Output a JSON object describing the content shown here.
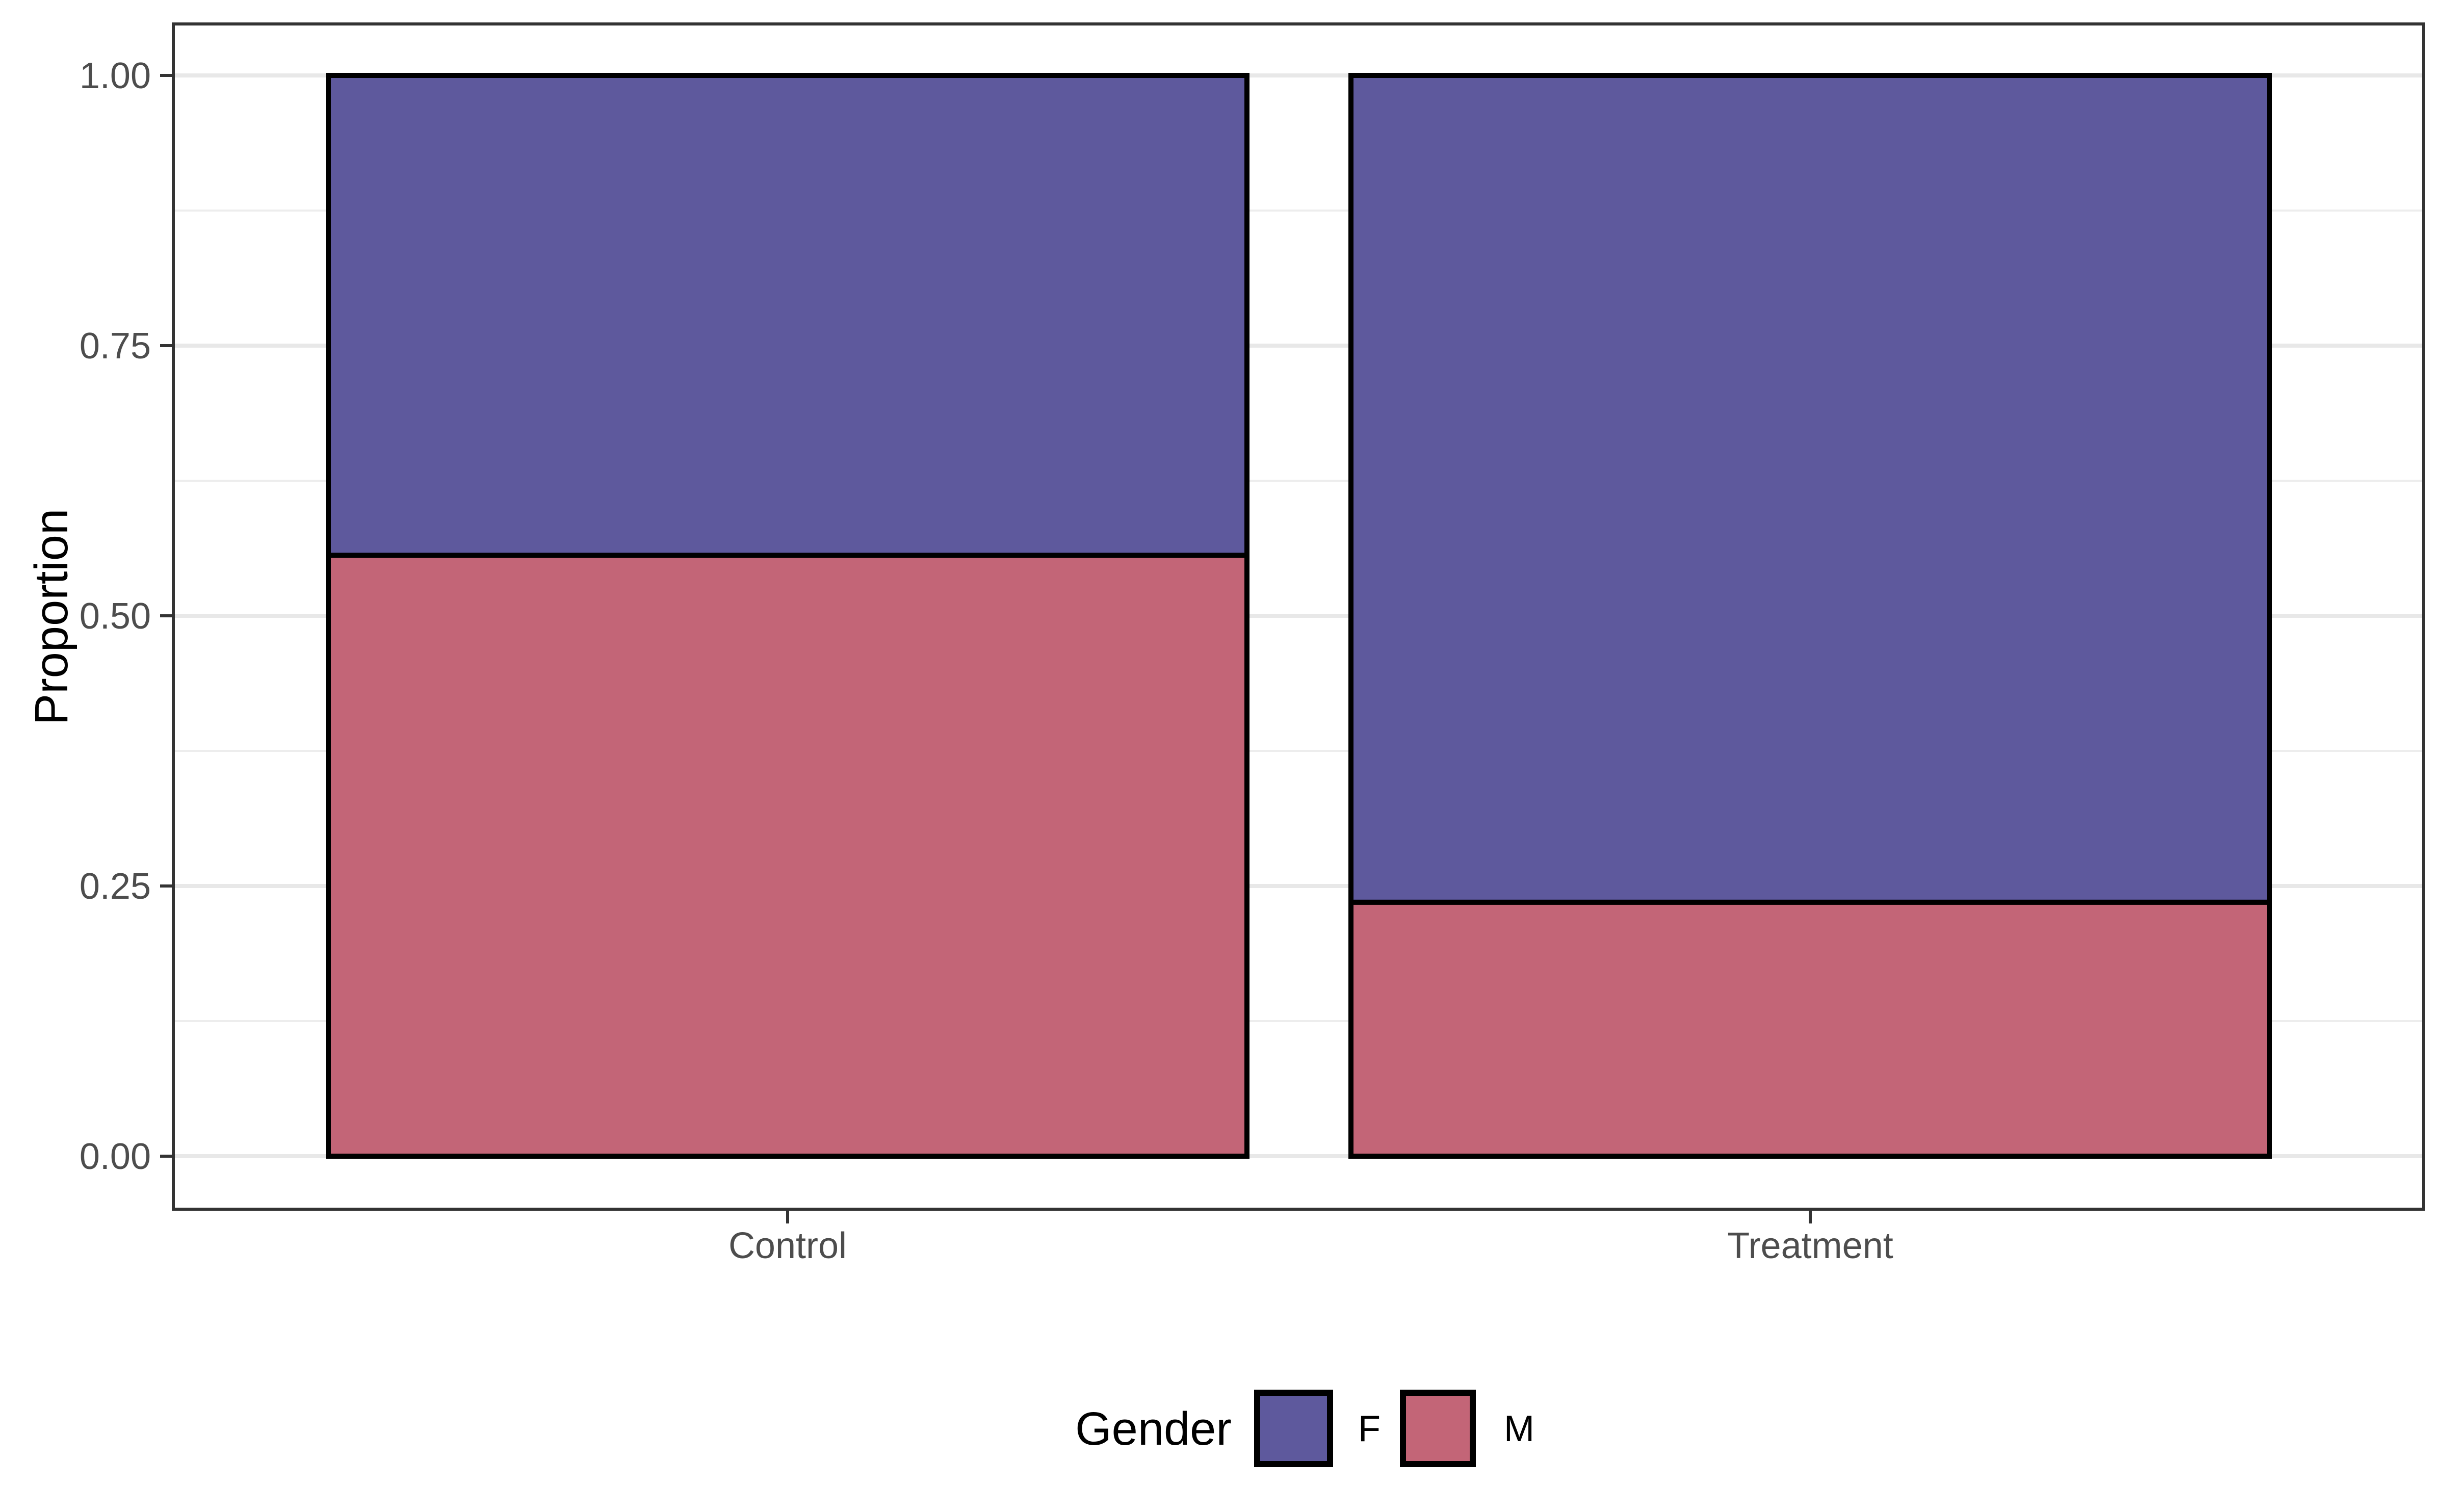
{
  "chart_data": {
    "type": "bar",
    "stacked": true,
    "normalized": true,
    "title": "",
    "categories": [
      "Control",
      "Treatment"
    ],
    "series": [
      {
        "name": "F",
        "color": "#5E599D",
        "values": [
          0.444,
          0.765
        ]
      },
      {
        "name": "M",
        "color": "#C36577",
        "values": [
          0.556,
          0.235
        ]
      }
    ],
    "stack_order_bottom_to_top": [
      "M",
      "F"
    ],
    "xlabel": "",
    "ylabel": "Proportion",
    "ylim": [
      0,
      1
    ],
    "yticks": [
      0,
      0.25,
      0.5,
      0.75,
      1
    ],
    "ytick_labels": [
      "0.00",
      "0.25",
      "0.50",
      "0.75",
      "1.00"
    ],
    "minor_yticks": [
      0.125,
      0.375,
      0.625,
      0.875
    ],
    "grid": true,
    "legend": {
      "title": "Gender",
      "entries": [
        "F",
        "M"
      ],
      "position": "bottom"
    },
    "colors": {
      "bar_outline": "#000000",
      "panel_border": "#333333",
      "tick_mark": "#333333",
      "axis_text": "#4D4D4D",
      "gridline_major": "#E8E8E8",
      "gridline_minor": "#EDEDED",
      "background": "#FFFFFF"
    }
  }
}
